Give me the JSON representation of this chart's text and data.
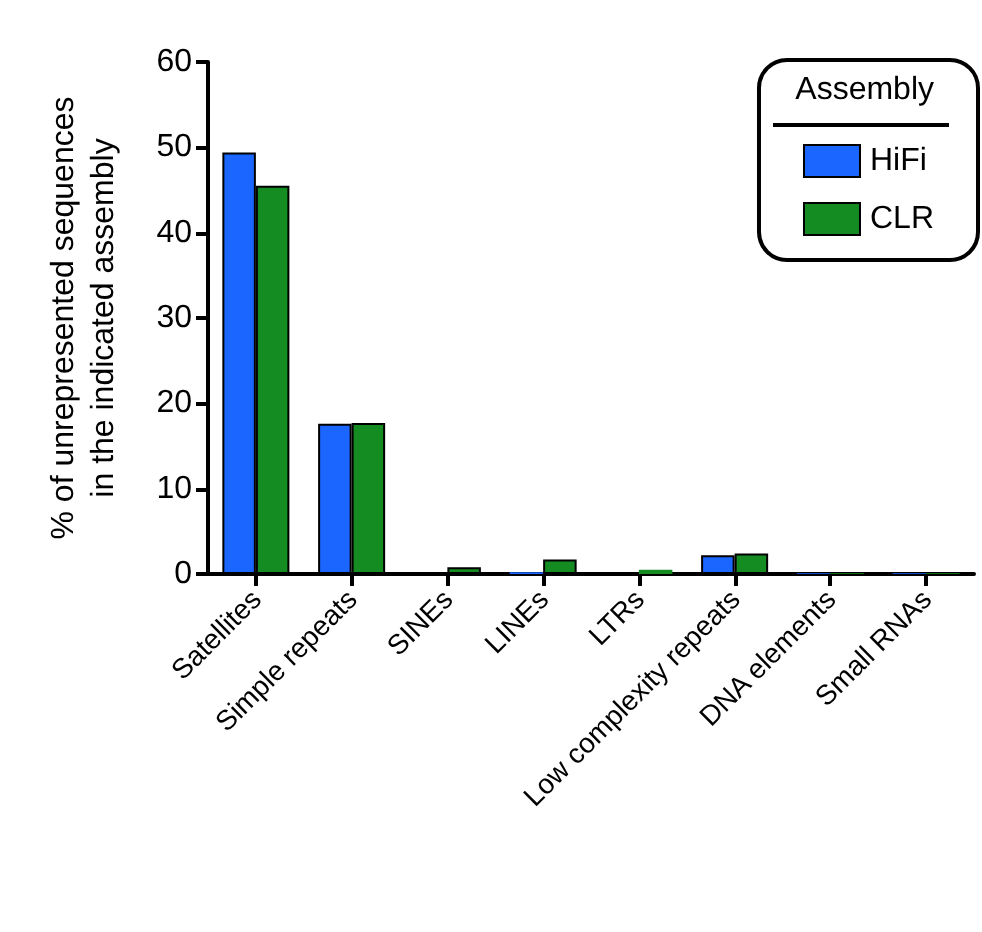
{
  "chart_data": {
    "type": "bar",
    "ylabel": "% of unrepresented sequences\nin the indicated assembly",
    "legend_title": "Assembly",
    "legend": "top right",
    "grid": false,
    "categories": [
      "Satellites",
      "Simple repeats",
      "SINEs",
      "LINEs",
      "LTRs",
      "Low complexity repeats",
      "DNA elements",
      "Small RNAs"
    ],
    "series": [
      {
        "name": "HiFi",
        "color": "#1a66ff",
        "values": [
          49.4,
          17.6,
          0,
          0.2,
          0,
          2.2,
          0.1,
          0.1
        ]
      },
      {
        "name": "CLR",
        "color": "#148c22",
        "values": [
          45.5,
          17.7,
          0.8,
          1.7,
          0.5,
          2.4,
          0.1,
          0.1
        ]
      }
    ],
    "ylim": [
      0,
      60
    ],
    "yticks": [
      0,
      10,
      20,
      30,
      40,
      50,
      60
    ]
  }
}
